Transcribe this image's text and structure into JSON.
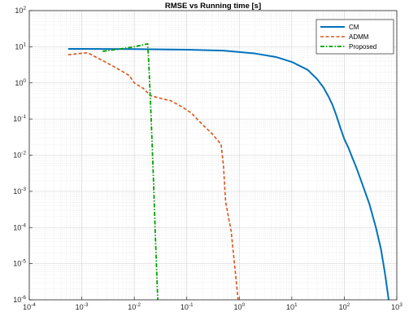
{
  "chart_data": {
    "type": "line",
    "title": "RMSE vs Running time [s]",
    "xlabel": "",
    "ylabel": "",
    "xscale": "log",
    "yscale": "log",
    "xlim": [
      0.0001,
      1000
    ],
    "ylim": [
      1e-06,
      100
    ],
    "x_tick_exponents": [
      -4,
      -3,
      -2,
      -1,
      0,
      1,
      2,
      3
    ],
    "y_tick_exponents": [
      -6,
      -5,
      -4,
      -3,
      -2,
      -1,
      0,
      1,
      2
    ],
    "tick_base": "10",
    "grid": true,
    "minor_grid": true,
    "legend_position": "top-right",
    "series": [
      {
        "name": "CM",
        "color": "#0072BD",
        "style": "solid",
        "points": [
          [
            0.00055,
            8.7
          ],
          [
            0.001,
            8.7
          ],
          [
            0.01,
            8.6
          ],
          [
            0.1,
            8.3
          ],
          [
            0.5,
            7.8
          ],
          [
            2,
            6.5
          ],
          [
            5,
            5.2
          ],
          [
            10,
            3.8
          ],
          [
            20,
            2.3
          ],
          [
            30,
            1.3
          ],
          [
            40,
            0.75
          ],
          [
            50,
            0.42
          ],
          [
            60,
            0.24
          ],
          [
            70,
            0.13
          ],
          [
            85,
            0.055
          ],
          [
            100,
            0.028
          ],
          [
            120,
            0.016
          ],
          [
            140,
            0.009
          ],
          [
            170,
            0.0045
          ],
          [
            220,
            0.0016
          ],
          [
            300,
            0.00045
          ],
          [
            400,
            0.0001
          ],
          [
            500,
            2.5e-05
          ],
          [
            600,
            5e-06
          ],
          [
            700,
            1e-06
          ]
        ]
      },
      {
        "name": "ADMM",
        "color": "#D95319",
        "style": "dashed",
        "points": [
          [
            0.00055,
            6.0
          ],
          [
            0.0009,
            6.5
          ],
          [
            0.0013,
            6.8
          ],
          [
            0.0018,
            5.3
          ],
          [
            0.003,
            3.6
          ],
          [
            0.005,
            2.4
          ],
          [
            0.008,
            1.6
          ],
          [
            0.01,
            1.0
          ],
          [
            0.015,
            0.7
          ],
          [
            0.02,
            0.45
          ],
          [
            0.03,
            0.38
          ],
          [
            0.05,
            0.32
          ],
          [
            0.08,
            0.22
          ],
          [
            0.12,
            0.15
          ],
          [
            0.2,
            0.07
          ],
          [
            0.3,
            0.04
          ],
          [
            0.45,
            0.02
          ],
          [
            0.5,
            0.005
          ],
          [
            0.55,
            0.0005
          ],
          [
            0.7,
            8e-05
          ],
          [
            0.85,
            5e-06
          ],
          [
            0.95,
            1e-06
          ]
        ]
      },
      {
        "name": "Proposed",
        "color": "#00A000",
        "style": "dashdot",
        "points": [
          [
            0.0025,
            7.5
          ],
          [
            0.005,
            8.5
          ],
          [
            0.01,
            10.0
          ],
          [
            0.018,
            12.0
          ],
          [
            0.019,
            3.0
          ],
          [
            0.021,
            0.1
          ],
          [
            0.023,
            0.003
          ],
          [
            0.025,
            8e-05
          ],
          [
            0.028,
            1e-06
          ]
        ]
      }
    ]
  }
}
